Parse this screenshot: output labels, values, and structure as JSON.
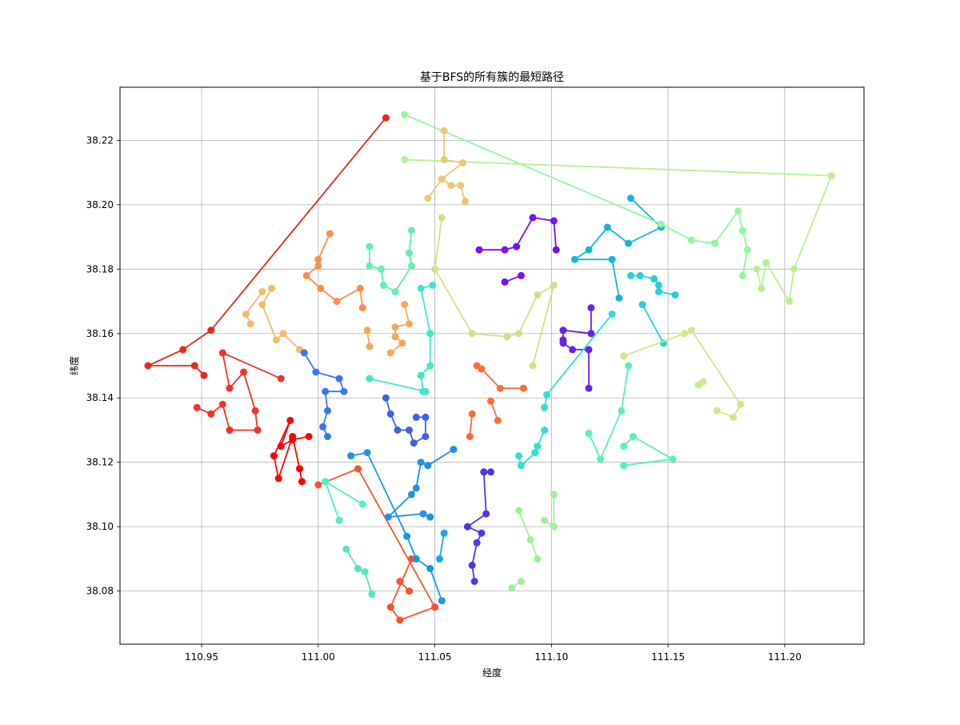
{
  "chart_data": {
    "type": "line",
    "title": "基于BFS的所有簇的最短路径",
    "xlabel": "经度",
    "ylabel": "纬度",
    "xlim": [
      110.915,
      111.234
    ],
    "ylim": [
      38.0635,
      38.2365
    ],
    "xticks": [
      "110.95",
      "111.00",
      "111.05",
      "111.10",
      "111.15",
      "111.20"
    ],
    "yticks": [
      "38.08",
      "38.10",
      "38.12",
      "38.14",
      "38.16",
      "38.18",
      "38.20",
      "38.22"
    ],
    "grid": true,
    "markers": "circle",
    "series": [
      {
        "color": "#e52a1a",
        "points": [
          [
            111.029,
            38.227
          ],
          [
            110.954,
            38.161
          ],
          [
            110.942,
            38.155
          ],
          [
            110.927,
            38.15
          ],
          [
            110.947,
            38.15
          ],
          [
            110.951,
            38.147
          ]
        ]
      },
      {
        "color": "#f4322a",
        "points": [
          [
            110.984,
            38.146
          ],
          [
            110.959,
            38.154
          ],
          [
            110.962,
            38.143
          ],
          [
            110.968,
            38.148
          ],
          [
            110.973,
            38.136
          ],
          [
            110.974,
            38.13
          ],
          [
            110.962,
            38.13
          ],
          [
            110.959,
            38.138
          ],
          [
            110.954,
            38.135
          ],
          [
            110.948,
            38.137
          ]
        ]
      },
      {
        "color": "#ff0000",
        "points": [
          [
            110.996,
            38.128
          ],
          [
            110.989,
            38.127
          ],
          [
            110.984,
            38.125
          ],
          [
            110.988,
            38.133
          ],
          [
            110.981,
            38.122
          ],
          [
            110.983,
            38.115
          ],
          [
            110.989,
            38.128
          ],
          [
            110.992,
            38.118
          ],
          [
            110.993,
            38.114
          ]
        ]
      },
      {
        "color": "#ff8c50",
        "points": [
          [
            111.005,
            38.191
          ],
          [
            111.0,
            38.183
          ],
          [
            111.0,
            38.181
          ],
          [
            110.995,
            38.178
          ],
          [
            111.001,
            38.174
          ],
          [
            111.008,
            38.17
          ],
          [
            111.018,
            38.174
          ],
          [
            111.019,
            38.168
          ]
        ]
      },
      {
        "color": "#f6ba6a",
        "points": [
          [
            110.976,
            38.173
          ],
          [
            110.969,
            38.166
          ],
          [
            110.971,
            38.163
          ]
        ]
      },
      {
        "color": "#f6ba6a",
        "points": [
          [
            110.98,
            38.174
          ],
          [
            110.976,
            38.169
          ],
          [
            110.982,
            38.158
          ],
          [
            110.985,
            38.16
          ],
          [
            110.992,
            38.155
          ]
        ]
      },
      {
        "color": "#f8a65a",
        "points": [
          [
            111.021,
            38.161
          ],
          [
            111.022,
            38.156
          ]
        ]
      },
      {
        "color": "#f8a65a",
        "points": [
          [
            111.037,
            38.169
          ],
          [
            111.039,
            38.163
          ],
          [
            111.033,
            38.162
          ],
          [
            111.033,
            38.159
          ],
          [
            111.036,
            38.157
          ],
          [
            111.031,
            38.154
          ]
        ]
      },
      {
        "color": "#ff6a3a",
        "points": [
          [
            111.068,
            38.15
          ],
          [
            111.07,
            38.149
          ],
          [
            111.078,
            38.143
          ],
          [
            111.088,
            38.143
          ]
        ]
      },
      {
        "color": "#ff6a3a",
        "points": [
          [
            111.066,
            38.135
          ],
          [
            111.065,
            38.128
          ]
        ]
      },
      {
        "color": "#ff6a3a",
        "points": [
          [
            111.074,
            38.139
          ],
          [
            111.077,
            38.133
          ]
        ]
      },
      {
        "color": "#ff5030",
        "points": [
          [
            111.0,
            38.113
          ],
          [
            111.017,
            38.118
          ],
          [
            111.05,
            38.075
          ],
          [
            111.035,
            38.071
          ],
          [
            111.031,
            38.075
          ],
          [
            111.04,
            38.09
          ]
        ]
      },
      {
        "color": "#ff5030",
        "points": [
          [
            111.035,
            38.083
          ],
          [
            111.039,
            38.08
          ]
        ]
      },
      {
        "color": "#3a78f0",
        "points": [
          [
            110.994,
            38.154
          ],
          [
            110.999,
            38.148
          ],
          [
            111.009,
            38.146
          ],
          [
            111.011,
            38.142
          ],
          [
            111.003,
            38.142
          ],
          [
            111.004,
            38.136
          ],
          [
            111.002,
            38.131
          ],
          [
            111.004,
            38.128
          ]
        ]
      },
      {
        "color": "#4060e8",
        "points": [
          [
            111.029,
            38.14
          ],
          [
            111.031,
            38.135
          ],
          [
            111.034,
            38.13
          ],
          [
            111.039,
            38.13
          ],
          [
            111.041,
            38.126
          ],
          [
            111.046,
            38.128
          ],
          [
            111.046,
            38.134
          ],
          [
            111.042,
            38.134
          ]
        ]
      },
      {
        "color": "#1898e0",
        "points": [
          [
            111.014,
            38.122
          ],
          [
            111.021,
            38.123
          ],
          [
            111.038,
            38.097
          ],
          [
            111.042,
            38.09
          ],
          [
            111.048,
            38.087
          ],
          [
            111.053,
            38.077
          ]
        ]
      },
      {
        "color": "#2090e8",
        "points": [
          [
            111.058,
            38.124
          ],
          [
            111.047,
            38.119
          ],
          [
            111.044,
            38.12
          ],
          [
            111.042,
            38.112
          ],
          [
            111.04,
            38.11
          ],
          [
            111.03,
            38.103
          ],
          [
            111.045,
            38.104
          ],
          [
            111.048,
            38.103
          ]
        ]
      },
      {
        "color": "#1aa8e0",
        "points": [
          [
            111.054,
            38.098
          ],
          [
            111.052,
            38.09
          ]
        ]
      },
      {
        "color": "#5038e0",
        "points": [
          [
            111.071,
            38.117
          ],
          [
            111.074,
            38.117
          ]
        ]
      },
      {
        "color": "#5038e0",
        "points": [
          [
            111.071,
            38.117
          ],
          [
            111.072,
            38.104
          ],
          [
            111.064,
            38.1
          ],
          [
            111.07,
            38.098
          ],
          [
            111.068,
            38.095
          ],
          [
            111.066,
            38.088
          ],
          [
            111.067,
            38.083
          ]
        ]
      },
      {
        "color": "#7a10f0",
        "points": [
          [
            111.069,
            38.186
          ],
          [
            111.08,
            38.186
          ],
          [
            111.085,
            38.187
          ],
          [
            111.092,
            38.196
          ],
          [
            111.101,
            38.195
          ],
          [
            111.102,
            38.186
          ]
        ]
      },
      {
        "color": "#7a10f0",
        "points": [
          [
            111.08,
            38.176
          ],
          [
            111.087,
            38.178
          ]
        ]
      },
      {
        "color": "#6a20f0",
        "points": [
          [
            111.117,
            38.168
          ],
          [
            111.117,
            38.16
          ],
          [
            111.105,
            38.161
          ],
          [
            111.105,
            38.158
          ],
          [
            111.105,
            38.157
          ],
          [
            111.109,
            38.155
          ],
          [
            111.116,
            38.155
          ],
          [
            111.116,
            38.143
          ]
        ]
      },
      {
        "color": "#18b4d8",
        "points": [
          [
            111.134,
            38.202
          ],
          [
            111.147,
            38.193
          ],
          [
            111.133,
            38.188
          ],
          [
            111.124,
            38.193
          ],
          [
            111.116,
            38.186
          ],
          [
            111.11,
            38.183
          ],
          [
            111.126,
            38.183
          ],
          [
            111.129,
            38.171
          ]
        ]
      },
      {
        "color": "#28d0d8",
        "points": [
          [
            111.134,
            38.178
          ],
          [
            111.138,
            38.178
          ],
          [
            111.144,
            38.177
          ],
          [
            111.146,
            38.175
          ],
          [
            111.146,
            38.173
          ],
          [
            111.153,
            38.172
          ]
        ]
      },
      {
        "color": "#28d0d8",
        "points": [
          [
            111.139,
            38.169
          ],
          [
            111.148,
            38.157
          ]
        ]
      },
      {
        "color": "#30e0d0",
        "points": [
          [
            111.126,
            38.166
          ],
          [
            111.098,
            38.141
          ],
          [
            111.097,
            38.137
          ]
        ]
      },
      {
        "color": "#30e0d0",
        "points": [
          [
            111.097,
            38.13
          ],
          [
            111.094,
            38.125
          ],
          [
            111.093,
            38.123
          ],
          [
            111.087,
            38.119
          ],
          [
            111.086,
            38.122
          ]
        ]
      },
      {
        "color": "#40e8c8",
        "points": [
          [
            111.049,
            38.175
          ],
          [
            111.044,
            38.174
          ],
          [
            111.048,
            38.16
          ],
          [
            111.048,
            38.15
          ],
          [
            111.044,
            38.147
          ],
          [
            111.045,
            38.142
          ],
          [
            111.046,
            38.142
          ],
          [
            111.022,
            38.146
          ]
        ]
      },
      {
        "color": "#60f0b0",
        "points": [
          [
            111.022,
            38.187
          ],
          [
            111.022,
            38.181
          ],
          [
            111.027,
            38.18
          ],
          [
            111.028,
            38.175
          ],
          [
            111.033,
            38.173
          ],
          [
            111.04,
            38.181
          ],
          [
            111.039,
            38.185
          ],
          [
            111.04,
            38.192
          ]
        ]
      },
      {
        "color": "#50f0c0",
        "points": [
          [
            111.003,
            38.114
          ],
          [
            111.019,
            38.107
          ]
        ]
      },
      {
        "color": "#50f0c0",
        "points": [
          [
            111.003,
            38.114
          ],
          [
            111.009,
            38.102
          ]
        ]
      },
      {
        "color": "#50e8b8",
        "points": [
          [
            111.012,
            38.093
          ],
          [
            111.017,
            38.087
          ],
          [
            111.02,
            38.086
          ],
          [
            111.023,
            38.079
          ]
        ]
      },
      {
        "color": "#58f0b8",
        "points": [
          [
            111.133,
            38.15
          ],
          [
            111.13,
            38.136
          ],
          [
            111.121,
            38.121
          ],
          [
            111.116,
            38.129
          ]
        ]
      },
      {
        "color": "#58f0b8",
        "points": [
          [
            111.131,
            38.125
          ],
          [
            111.135,
            38.128
          ],
          [
            111.152,
            38.121
          ],
          [
            111.131,
            38.119
          ]
        ]
      },
      {
        "color": "#90f8a0",
        "points": [
          [
            111.037,
            38.228
          ],
          [
            111.147,
            38.194
          ],
          [
            111.16,
            38.189
          ],
          [
            111.17,
            38.188
          ],
          [
            111.18,
            38.198
          ],
          [
            111.182,
            38.192
          ],
          [
            111.184,
            38.186
          ],
          [
            111.182,
            38.178
          ]
        ]
      },
      {
        "color": "#a0f098",
        "points": [
          [
            111.086,
            38.105
          ],
          [
            111.091,
            38.096
          ],
          [
            111.094,
            38.09
          ]
        ]
      },
      {
        "color": "#a0f098",
        "points": [
          [
            111.097,
            38.102
          ],
          [
            111.101,
            38.1
          ],
          [
            111.101,
            38.11
          ]
        ]
      },
      {
        "color": "#a0f098",
        "points": [
          [
            111.083,
            38.081
          ],
          [
            111.087,
            38.083
          ]
        ]
      },
      {
        "color": "#b8f090",
        "points": [
          [
            111.037,
            38.214
          ],
          [
            111.22,
            38.209
          ],
          [
            111.204,
            38.18
          ],
          [
            111.202,
            38.17
          ],
          [
            111.192,
            38.182
          ],
          [
            111.19,
            38.174
          ],
          [
            111.188,
            38.18
          ]
        ]
      },
      {
        "color": "#c8ec88",
        "points": [
          [
            111.131,
            38.153
          ],
          [
            111.157,
            38.16
          ],
          [
            111.16,
            38.161
          ],
          [
            111.181,
            38.138
          ],
          [
            111.178,
            38.134
          ],
          [
            111.171,
            38.136
          ]
        ]
      },
      {
        "color": "#c8ec88",
        "points": [
          [
            111.163,
            38.144
          ],
          [
            111.165,
            38.145
          ]
        ]
      },
      {
        "color": "#d8dc88",
        "points": [
          [
            111.053,
            38.196
          ],
          [
            111.05,
            38.18
          ],
          [
            111.066,
            38.16
          ],
          [
            111.081,
            38.159
          ],
          [
            111.086,
            38.16
          ],
          [
            111.094,
            38.172
          ],
          [
            111.101,
            38.175
          ],
          [
            111.092,
            38.15
          ]
        ]
      },
      {
        "color": "#e8c878",
        "points": [
          [
            111.054,
            38.223
          ],
          [
            111.054,
            38.214
          ],
          [
            111.062,
            38.213
          ],
          [
            111.053,
            38.208
          ],
          [
            111.057,
            38.206
          ],
          [
            111.061,
            38.206
          ],
          [
            111.063,
            38.201
          ]
        ]
      },
      {
        "color": "#e8c878",
        "points": [
          [
            111.047,
            38.202
          ],
          [
            111.053,
            38.208
          ]
        ]
      }
    ]
  }
}
